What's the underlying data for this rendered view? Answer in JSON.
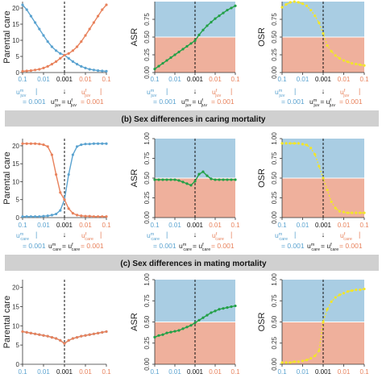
{
  "colors": {
    "blue": "#5ba3d0",
    "orange": "#e8825c",
    "green": "#22a046",
    "yellow": "#f2e52a",
    "bg_blue": "#a9cde3",
    "bg_orange": "#efb09c",
    "banner_bg": "#d0d0d0",
    "axis": "#333333",
    "grid_text": "#333333"
  },
  "banners": [
    "(b) Sex differences in caring mortality",
    "(c) Sex differences in mating mortality"
  ],
  "x_ticks": [
    "0.1",
    "0.01",
    "0.001",
    "0.01",
    "0.1"
  ],
  "annotation": {
    "arrow": "↓",
    "bracket": "|",
    "row_a": {
      "left_symbol": "u",
      "left_sup": "m",
      "left_sub": "juv",
      "left_value": "= 0.001",
      "mid_lhs": "u",
      "mid_sup1": "m",
      "mid_sub1": "juv",
      "mid_eq": "= u",
      "mid_sup2": "f",
      "mid_sub2": "juv",
      "right_symbol": "u",
      "right_sup": "f",
      "right_sub": "juv",
      "right_value": "= 0.001"
    },
    "row_b": {
      "left_symbol": "u",
      "left_sup": "m",
      "left_sub": "care",
      "left_value": "= 0.001",
      "mid_lhs": "u",
      "mid_sup1": "m",
      "mid_sub1": "care",
      "mid_eq": "= u",
      "mid_sup2": "f",
      "mid_sub2": "care",
      "right_symbol": "u",
      "right_sup": "f",
      "right_sub": "care",
      "right_value": "= 0.001"
    }
  },
  "chart_data": [
    {
      "panel": "a-parental-care",
      "type": "line",
      "ylabel": "Parental care",
      "ylim": [
        0,
        22
      ],
      "y_ticks": [
        0,
        5,
        10,
        15,
        20
      ],
      "x": [
        0,
        1,
        2,
        3,
        4,
        5,
        6,
        7,
        8,
        9,
        10,
        11,
        12,
        13,
        14,
        15,
        16,
        17,
        18,
        19,
        20
      ],
      "series": [
        {
          "color_key": "blue",
          "values": [
            21,
            19.5,
            17.5,
            15.5,
            13.5,
            11.5,
            9.6,
            8,
            6.8,
            5.9,
            5.4,
            4.4,
            3.4,
            2.6,
            1.9,
            1.4,
            1,
            0.8,
            0.6,
            0.5,
            0.4
          ]
        },
        {
          "color_key": "orange",
          "values": [
            0.4,
            0.5,
            0.6,
            0.8,
            1,
            1.4,
            1.9,
            2.6,
            3.4,
            4.4,
            5.4,
            5.9,
            6.8,
            8,
            9.6,
            11.5,
            13.5,
            15.5,
            17.5,
            19.5,
            21
          ]
        }
      ]
    },
    {
      "panel": "a-asr",
      "type": "line",
      "ylabel": "ASR",
      "ylim": [
        0,
        1
      ],
      "y_ticks": [
        "0.00",
        "0.25",
        "0.50",
        "0.75"
      ],
      "x": [
        0,
        1,
        2,
        3,
        4,
        5,
        6,
        7,
        8,
        9,
        10,
        11,
        12,
        13,
        14,
        15,
        16,
        17,
        18,
        19,
        20
      ],
      "series": [
        {
          "color_key": "green",
          "values": [
            0.05,
            0.09,
            0.13,
            0.17,
            0.21,
            0.25,
            0.29,
            0.33,
            0.37,
            0.41,
            0.45,
            0.53,
            0.6,
            0.66,
            0.71,
            0.76,
            0.8,
            0.84,
            0.88,
            0.91,
            0.94
          ]
        }
      ]
    },
    {
      "panel": "a-osr",
      "type": "line",
      "ylabel": "OSR",
      "ylim": [
        0,
        1
      ],
      "y_ticks": [
        "0.00",
        "0.25",
        "0.50",
        "0.75"
      ],
      "x": [
        0,
        1,
        2,
        3,
        4,
        5,
        6,
        7,
        8,
        9,
        10,
        11,
        12,
        13,
        14,
        15,
        16,
        17,
        18,
        19,
        20
      ],
      "series": [
        {
          "color_key": "yellow",
          "values": [
            0.92,
            0.96,
            0.99,
            1.0,
            0.99,
            0.97,
            0.94,
            0.88,
            0.8,
            0.7,
            0.55,
            0.38,
            0.3,
            0.24,
            0.2,
            0.17,
            0.15,
            0.13,
            0.12,
            0.11,
            0.1
          ]
        }
      ]
    },
    {
      "panel": "b-parental-care",
      "type": "line",
      "ylabel": "Parental care",
      "ylim": [
        0,
        22
      ],
      "y_ticks": [
        0,
        5,
        10,
        15,
        20
      ],
      "x": [
        0,
        1,
        2,
        3,
        4,
        5,
        6,
        7,
        8,
        9,
        10,
        11,
        12,
        13,
        14,
        15,
        16,
        17,
        18,
        19,
        20
      ],
      "series": [
        {
          "color_key": "blue",
          "values": [
            0.3,
            0.3,
            0.3,
            0.3,
            0.3,
            0.4,
            0.5,
            0.7,
            1,
            2,
            5,
            12,
            17.5,
            19.8,
            20.3,
            20.5,
            20.5,
            20.6,
            20.6,
            20.6,
            20.6
          ]
        },
        {
          "color_key": "orange",
          "values": [
            20.6,
            20.6,
            20.6,
            20.6,
            20.5,
            20.3,
            19.8,
            17.5,
            12,
            7,
            5,
            2.5,
            1.2,
            0.7,
            0.5,
            0.4,
            0.4,
            0.3,
            0.3,
            0.3,
            0.3
          ]
        }
      ]
    },
    {
      "panel": "b-asr",
      "type": "line",
      "ylabel": "ASR",
      "ylim": [
        0,
        1
      ],
      "y_ticks": [
        "0.00",
        "0.25",
        "0.50",
        "0.75",
        "1.00"
      ],
      "x": [
        0,
        1,
        2,
        3,
        4,
        5,
        6,
        7,
        8,
        9,
        10,
        11,
        12,
        13,
        14,
        15,
        16,
        17,
        18,
        19,
        20
      ],
      "series": [
        {
          "color_key": "green",
          "values": [
            0.48,
            0.48,
            0.48,
            0.48,
            0.48,
            0.48,
            0.47,
            0.45,
            0.43,
            0.41,
            0.46,
            0.55,
            0.58,
            0.53,
            0.49,
            0.48,
            0.48,
            0.48,
            0.48,
            0.48,
            0.48
          ]
        }
      ]
    },
    {
      "panel": "b-osr",
      "type": "line",
      "ylabel": "OSR",
      "ylim": [
        0,
        1
      ],
      "y_ticks": [
        "0.00",
        "0.25",
        "0.50",
        "0.75",
        "1.00"
      ],
      "x": [
        0,
        1,
        2,
        3,
        4,
        5,
        6,
        7,
        8,
        9,
        10,
        11,
        12,
        13,
        14,
        15,
        16,
        17,
        18,
        19,
        20
      ],
      "series": [
        {
          "color_key": "yellow",
          "values": [
            0.94,
            0.94,
            0.94,
            0.94,
            0.94,
            0.93,
            0.92,
            0.88,
            0.8,
            0.65,
            0.5,
            0.35,
            0.2,
            0.12,
            0.08,
            0.07,
            0.06,
            0.06,
            0.06,
            0.06,
            0.06
          ]
        }
      ]
    },
    {
      "panel": "c-parental-care",
      "type": "line",
      "ylabel": "Parental care",
      "ylim": [
        0,
        22
      ],
      "y_ticks": [
        0,
        5,
        10,
        15,
        20
      ],
      "x": [
        0,
        1,
        2,
        3,
        4,
        5,
        6,
        7,
        8,
        9,
        10,
        11,
        12,
        13,
        14,
        15,
        16,
        17,
        18,
        19,
        20
      ],
      "series": [
        {
          "color_key": "blue",
          "values": [
            8.5,
            8.3,
            8.1,
            7.9,
            7.7,
            7.5,
            7.3,
            7,
            6.7,
            6.2,
            5.4,
            6.2,
            6.7,
            7,
            7.3,
            7.5,
            7.7,
            7.9,
            8.1,
            8.3,
            8.5
          ]
        },
        {
          "color_key": "orange",
          "values": [
            8.5,
            8.3,
            8.1,
            7.9,
            7.7,
            7.5,
            7.3,
            7,
            6.7,
            6.2,
            5.4,
            6.2,
            6.7,
            7,
            7.3,
            7.5,
            7.7,
            7.9,
            8.1,
            8.3,
            8.5
          ]
        }
      ]
    },
    {
      "panel": "c-asr",
      "type": "line",
      "ylabel": "ASR",
      "ylim": [
        0,
        1
      ],
      "y_ticks": [
        "0.00",
        "0.25",
        "0.50",
        "0.75",
        "1.00"
      ],
      "x": [
        0,
        1,
        2,
        3,
        4,
        5,
        6,
        7,
        8,
        9,
        10,
        11,
        12,
        13,
        14,
        15,
        16,
        17,
        18,
        19,
        20
      ],
      "series": [
        {
          "color_key": "green",
          "values": [
            0.32,
            0.34,
            0.35,
            0.37,
            0.38,
            0.39,
            0.4,
            0.42,
            0.44,
            0.46,
            0.49,
            0.52,
            0.55,
            0.58,
            0.61,
            0.63,
            0.65,
            0.66,
            0.67,
            0.68,
            0.69
          ]
        }
      ]
    },
    {
      "panel": "c-osr",
      "type": "line",
      "ylabel": "OSR",
      "ylim": [
        0,
        1
      ],
      "y_ticks": [
        "0.00",
        "0.25",
        "0.50",
        "0.75",
        "1.00"
      ],
      "x": [
        0,
        1,
        2,
        3,
        4,
        5,
        6,
        7,
        8,
        9,
        10,
        11,
        12,
        13,
        14,
        15,
        16,
        17,
        18,
        19,
        20
      ],
      "series": [
        {
          "color_key": "yellow",
          "values": [
            0.02,
            0.02,
            0.02,
            0.03,
            0.03,
            0.04,
            0.05,
            0.07,
            0.1,
            0.16,
            0.5,
            0.65,
            0.74,
            0.79,
            0.82,
            0.84,
            0.86,
            0.87,
            0.88,
            0.88,
            0.89
          ]
        }
      ]
    }
  ]
}
